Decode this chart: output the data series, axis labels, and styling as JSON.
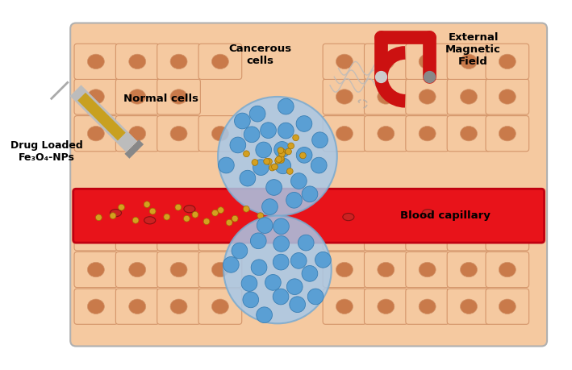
{
  "background_color": "#ffffff",
  "tissue_color": "#f5c9a0",
  "cell_border_color": "#d4956a",
  "normal_cell_fill": "#c97a4a",
  "blood_capillary_color": "#e8131a",
  "blood_capillary_border": "#c00010",
  "cancerous_region_fill": "#a8c8e8",
  "cancerous_region_border": "#7aaacf",
  "cancer_cell_fill": "#5a9fd4",
  "cancer_cell_border": "#3a7fb4",
  "np_color": "#d4a020",
  "np_border": "#a07000",
  "rbc_color": "#cc2222",
  "magnet_red": "#cc1111",
  "magnet_silver": "#888888",
  "syringe_color": "#cccccc",
  "syringe_needle": "#aaaaaa",
  "syringe_liquid": "#c8a020",
  "label_drug": "Drug Loaded\nFe₃O₄-NPs",
  "label_normal": "Normal cells",
  "label_cancerous": "Cancerous\ncells",
  "label_external": "External\nMagnetic\nField",
  "label_blood": "Blood capillary",
  "fig_width": 7.09,
  "fig_height": 4.6,
  "dpi": 100
}
